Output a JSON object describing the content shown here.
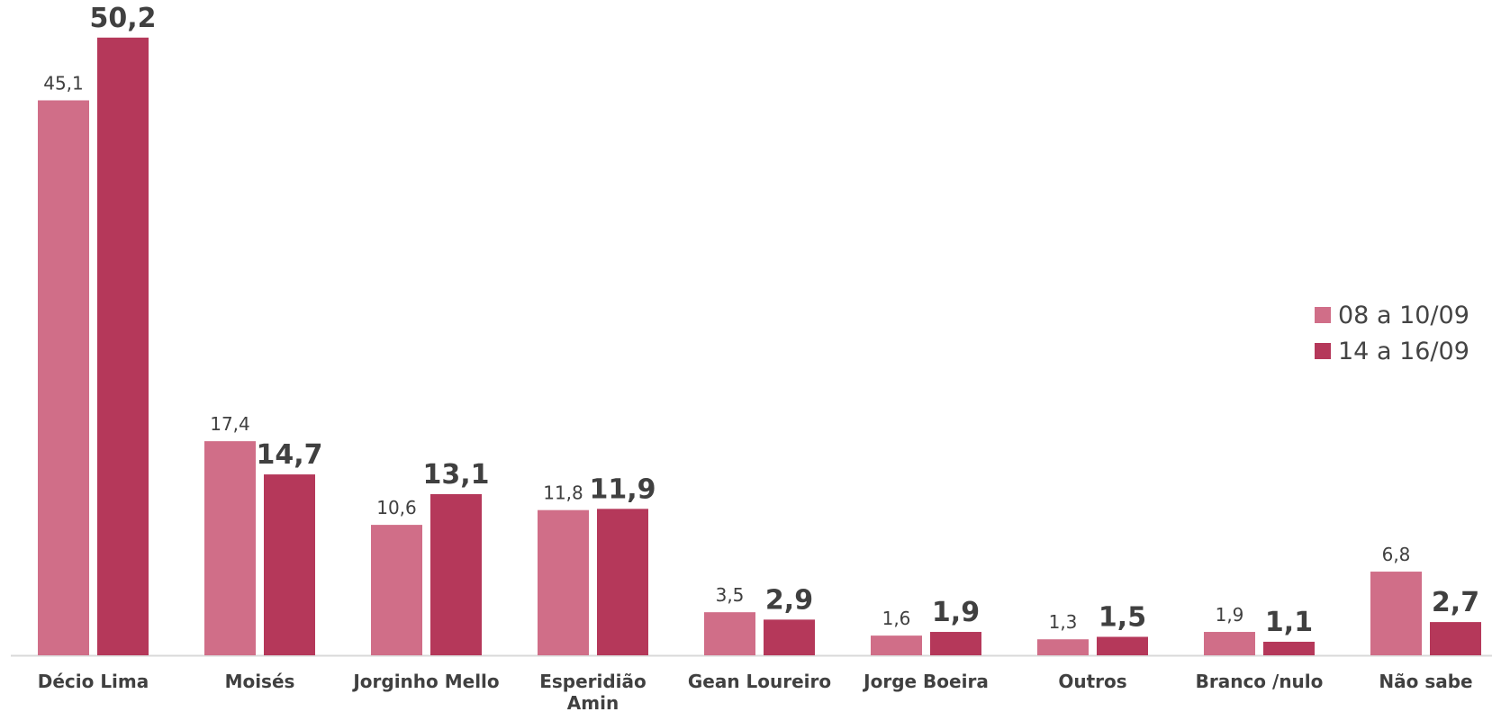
{
  "chart_data": {
    "type": "bar",
    "categories": [
      "Décio Lima",
      "Moisés",
      "Jorginho Mello",
      "Esperidião Amin",
      "Gean Loureiro",
      "Jorge Boeira",
      "Outros",
      "Branco /nulo",
      "Não sabe"
    ],
    "category_lines": [
      [
        "Décio Lima"
      ],
      [
        "Moisés"
      ],
      [
        "Jorginho Mello"
      ],
      [
        "Esperidião",
        "Amin"
      ],
      [
        "Gean Loureiro"
      ],
      [
        "Jorge Boeira"
      ],
      [
        "Outros"
      ],
      [
        "Branco /nulo"
      ],
      [
        "Não sabe"
      ]
    ],
    "series": [
      {
        "name": "08 a 10/09",
        "color": "#d06e88",
        "values": [
          45.1,
          17.4,
          10.6,
          11.8,
          3.5,
          1.6,
          1.3,
          1.9,
          6.8
        ],
        "labels": [
          "45,1",
          "17,4",
          "10,6",
          "11,8",
          "3,5",
          "1,6",
          "1,3",
          "1,9",
          "6,8"
        ]
      },
      {
        "name": "14 a 16/09",
        "color": "#b5385a",
        "values": [
          50.2,
          14.7,
          13.1,
          11.9,
          2.9,
          1.9,
          1.5,
          1.1,
          2.7
        ],
        "labels": [
          "50,2",
          "14,7",
          "13,1",
          "11,9",
          "2,9",
          "1,9",
          "1,5",
          "1,1",
          "2,7"
        ]
      }
    ],
    "ylim": [
      0,
      52
    ],
    "grid": false,
    "legend": "right",
    "label_color": "#404040",
    "axis_color": "#d9d9d9"
  }
}
